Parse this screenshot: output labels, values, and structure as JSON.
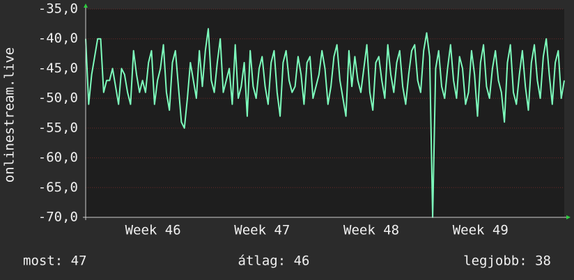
{
  "chart_data": {
    "type": "line",
    "y_label": "onlinestream.live",
    "series": [
      {
        "color": "#7dfcbc",
        "values": [
          -40,
          -51,
          -46,
          -43,
          -40,
          -40,
          -49,
          -47,
          -47,
          -45,
          -48,
          -51,
          -45,
          -46,
          -49,
          -51,
          -42,
          -46,
          -49,
          -47,
          -49,
          -44,
          -42,
          -51,
          -47,
          -45,
          -41,
          -49,
          -52,
          -44,
          -42,
          -48,
          -54,
          -55,
          -50,
          -44,
          -47,
          -50,
          -42,
          -48,
          -42,
          -38.3,
          -47,
          -49,
          -44,
          -40,
          -49,
          -47,
          -45,
          -51,
          -41,
          -50,
          -48,
          -44,
          -53,
          -42,
          -48,
          -50,
          -45,
          -43,
          -48,
          -51,
          -44,
          -42,
          -49,
          -53,
          -44,
          -42,
          -47,
          -49,
          -48,
          -43,
          -46,
          -51,
          -44,
          -43,
          -50,
          -48,
          -46,
          -42,
          -45,
          -51,
          -48,
          -43,
          -41,
          -47,
          -50,
          -53,
          -42,
          -48,
          -43,
          -47,
          -49,
          -45,
          -41,
          -49,
          -52,
          -44,
          -43,
          -47,
          -50,
          -41,
          -46,
          -49,
          -44,
          -42,
          -48,
          -51,
          -46,
          -42,
          -41,
          -47,
          -49,
          -42,
          -39,
          -43,
          -70,
          -45,
          -42,
          -48,
          -50,
          -45,
          -41,
          -47,
          -50,
          -43,
          -45,
          -51,
          -49,
          -42,
          -46,
          -53,
          -44,
          -41,
          -48,
          -50,
          -45,
          -42,
          -47,
          -49,
          -54,
          -44,
          -41,
          -49,
          -51,
          -46,
          -42,
          -48,
          -52,
          -44,
          -41,
          -47,
          -50,
          -43,
          -40,
          -46,
          -51,
          -44,
          -42,
          -50,
          -47
        ]
      }
    ],
    "xlim": [
      0,
      160
    ],
    "xticks": [
      {
        "value": 22.5,
        "label": "Week 46"
      },
      {
        "value": 59,
        "label": "Week 47"
      },
      {
        "value": 95.5,
        "label": "Week 48"
      },
      {
        "value": 132,
        "label": "Week 49"
      }
    ],
    "ylim": [
      -70,
      -35
    ],
    "yticks": [
      {
        "value": -35,
        "label": "-35,0"
      },
      {
        "value": -40,
        "label": "-40,0"
      },
      {
        "value": -45,
        "label": "-45,0"
      },
      {
        "value": -50,
        "label": "-50,0"
      },
      {
        "value": -55,
        "label": "-55,0"
      },
      {
        "value": -60,
        "label": "-60,0"
      },
      {
        "value": -65,
        "label": "-65,0"
      },
      {
        "value": -70,
        "label": "-70,0"
      }
    ],
    "grid": true,
    "annotations": [
      "most: 47",
      "átlag: 46",
      "legjobb: 38"
    ]
  }
}
